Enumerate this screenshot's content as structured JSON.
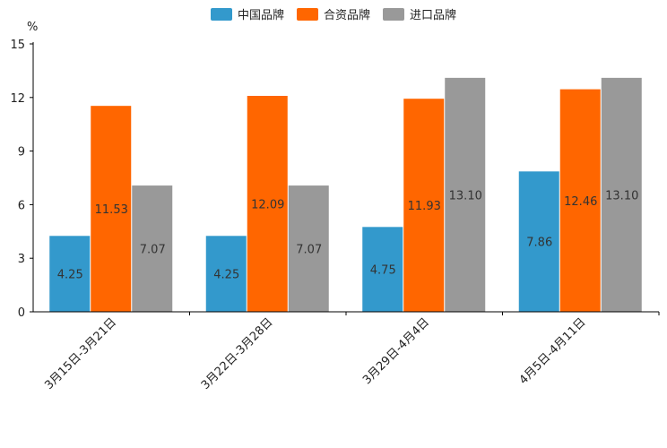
{
  "chart_data": {
    "type": "bar",
    "title": "",
    "xlabel": "",
    "ylabel": "%",
    "ylim": [
      0,
      15
    ],
    "yticks": [
      0,
      3,
      6,
      9,
      12,
      15
    ],
    "grid": false,
    "legend_position": "top-center",
    "categories": [
      "3月15日-3月21日",
      "3月22日-3月28日",
      "3月29日-4月4日",
      "4月5日-4月11日"
    ],
    "series": [
      {
        "name": "中国品牌",
        "color": "#3399cc",
        "values": [
          4.25,
          4.25,
          4.75,
          7.86
        ],
        "labels": [
          "4.25",
          "4.25",
          "4.75",
          "7.86"
        ]
      },
      {
        "name": "合资品牌",
        "color": "#ff6600",
        "values": [
          11.53,
          12.09,
          11.93,
          12.46
        ],
        "labels": [
          "11.53",
          "12.09",
          "11.93",
          "12.46"
        ]
      },
      {
        "name": "进口品牌",
        "color": "#999999",
        "values": [
          7.07,
          7.07,
          13.1,
          13.1
        ],
        "labels": [
          "7.07",
          "7.07",
          "13.10",
          "13.10"
        ]
      }
    ]
  }
}
